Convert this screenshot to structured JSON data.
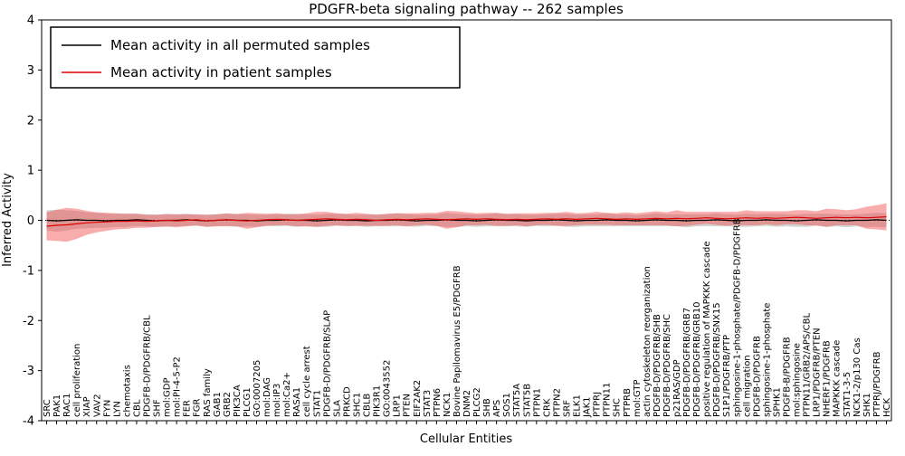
{
  "title": "PDGFR-beta signaling pathway -- 262 samples",
  "axes": {
    "xlabel": "Cellular Entities",
    "ylabel": "Inferred Activity",
    "ylim": [
      -4,
      4
    ],
    "yticks": [
      -4,
      -3,
      -2,
      -1,
      0,
      1,
      2,
      3,
      4
    ]
  },
  "legend": {
    "position": "upper left",
    "items": [
      {
        "label": "Mean activity in all permuted samples",
        "color": "#000000"
      },
      {
        "label": "Mean activity in patient samples",
        "color": "#dd0000"
      }
    ]
  },
  "colors": {
    "permuted_line": "#000000",
    "patient_line": "#dd0000",
    "permuted_band": "rgba(128,128,128,0.35)",
    "patient_band": "rgba(240,70,70,0.45)"
  },
  "chart_data": {
    "type": "line",
    "title": "PDGFR-beta signaling pathway -- 262 samples",
    "xlabel": "Cellular Entities",
    "ylabel": "Inferred Activity",
    "ylim": [
      -4,
      4
    ],
    "grid": false,
    "legend_position": "upper left",
    "categories": [
      "SRC",
      "PAK1",
      "RAC1",
      "cell proliferation",
      "XIAP",
      "VAV2",
      "FYN",
      "LYN",
      "chemotaxis",
      "CBL",
      "PDGFB-D/PDGFRB/CBL",
      "SHF",
      "mol:GDP",
      "mol:PI-4-5-P2",
      "FER",
      "FGR",
      "RAS family",
      "GAB1",
      "GRB2",
      "PIK3CA",
      "PLCG1",
      "GO:0007205",
      "mol:DAG",
      "mol:IP3",
      "mol:Ca2+",
      "RASA1",
      "cell cycle arrest",
      "STAT1",
      "PDGFB-D/PDGFRB/SLAP",
      "SLA",
      "PRKCD",
      "SHC1",
      "CBLB",
      "PIK3R1",
      "GO:0043552",
      "LRP1",
      "PTEN",
      "EIF2AK2",
      "STAT3",
      "PTPN6",
      "NCK1",
      "Bovine Papilomavirus E5/PDGFRB",
      "DNM2",
      "PLCG2",
      "SHB",
      "APS",
      "SOS1",
      "STAT5A",
      "STAT5B",
      "PTPN1",
      "CRK",
      "PTPN2",
      "SRF",
      "ELK1",
      "JAK1",
      "PTPRJ",
      "PTPN11",
      "SHC",
      "PTPRB",
      "mol:GTP",
      "actin cytoskeleton reorganization",
      "PDGFB-D/PDGFRB/SHB",
      "PDGFB-D/PDGFRB/SHC",
      "p21RAS/GDP",
      "PDGFB-D/PDGFRB/GRB7",
      "PDGFB-D/PDGFRB/GRB10",
      "positive regulation of MAPKKK cascade",
      "PDGFB-D/PDGFRB/SNX15",
      "S1P1/PDGFRB/PTP",
      "sphingosine-1-phosphate/PDGFB-D/PDGFRB",
      "cell migration",
      "PDGFB-D/PDGFRB",
      "sphingosine-1-phosphate",
      "SPHK1",
      "PDGFB-B/PDGFRB",
      "mol:sphingosine",
      "PTPN11/GRB2/APS/CBL",
      "LRP1/PDGFRB/PTEN",
      "NHERF1/PDGFRB",
      "MAPKKK cascade",
      "STAT1-3-5",
      "NCK1-2/p130 Cas",
      "SHK1",
      "PTPRJ/PDGFRB",
      "HCK"
    ],
    "series": [
      {
        "name": "Mean activity in all permuted samples",
        "color": "#000000",
        "band_color": "rgba(128,128,128,0.35)",
        "values": [
          0.0,
          -0.01,
          0.0,
          0.01,
          0.0,
          0.0,
          -0.01,
          0.0,
          0.0,
          0.01,
          0.0,
          -0.01,
          0.0,
          0.0,
          0.01,
          0.0,
          -0.01,
          0.0,
          0.01,
          0.0,
          0.0,
          -0.01,
          0.0,
          0.0,
          0.01,
          0.0,
          0.0,
          -0.01,
          0.0,
          0.01,
          0.0,
          0.0,
          -0.01,
          0.0,
          0.0,
          0.01,
          0.0,
          -0.01,
          0.0,
          0.0,
          0.01,
          0.0,
          0.0,
          -0.01,
          0.0,
          0.01,
          0.0,
          0.0,
          -0.01,
          0.0,
          0.0,
          0.01,
          0.0,
          -0.01,
          0.0,
          0.0,
          0.01,
          0.0,
          0.0,
          -0.01,
          0.0,
          0.01,
          0.0,
          0.0,
          -0.01,
          0.0,
          0.0,
          0.01,
          0.0,
          -0.01,
          0.0,
          0.0,
          0.01,
          0.0,
          0.0,
          -0.01,
          0.0,
          0.01,
          0.0,
          0.0,
          -0.01,
          0.0,
          0.0,
          0.01,
          0.0
        ],
        "band_halfwidth": [
          0.2,
          0.22,
          0.2,
          0.18,
          0.16,
          0.15,
          0.14,
          0.13,
          0.13,
          0.12,
          0.12,
          0.12,
          0.13,
          0.12,
          0.12,
          0.11,
          0.12,
          0.12,
          0.12,
          0.13,
          0.12,
          0.12,
          0.11,
          0.12,
          0.12,
          0.13,
          0.12,
          0.12,
          0.13,
          0.12,
          0.12,
          0.11,
          0.12,
          0.12,
          0.12,
          0.13,
          0.12,
          0.12,
          0.11,
          0.12,
          0.14,
          0.13,
          0.12,
          0.12,
          0.12,
          0.13,
          0.12,
          0.12,
          0.12,
          0.11,
          0.12,
          0.12,
          0.13,
          0.12,
          0.12,
          0.12,
          0.13,
          0.12,
          0.12,
          0.11,
          0.12,
          0.13,
          0.12,
          0.12,
          0.13,
          0.12,
          0.12,
          0.13,
          0.12,
          0.12,
          0.13,
          0.12,
          0.12,
          0.13,
          0.12,
          0.12,
          0.13,
          0.12,
          0.13,
          0.12,
          0.13,
          0.12,
          0.13,
          0.14,
          0.14
        ]
      },
      {
        "name": "Mean activity in patient samples",
        "color": "#dd0000",
        "band_color": "rgba(240,70,70,0.45)",
        "values": [
          -0.12,
          -0.1,
          -0.09,
          -0.07,
          -0.05,
          -0.04,
          -0.03,
          -0.02,
          -0.02,
          -0.01,
          -0.02,
          -0.01,
          0.0,
          -0.01,
          0.0,
          0.01,
          -0.01,
          0.0,
          0.01,
          0.0,
          -0.01,
          0.0,
          0.01,
          0.02,
          0.01,
          0.0,
          0.01,
          0.02,
          0.03,
          0.02,
          0.01,
          0.02,
          0.01,
          0.0,
          0.01,
          0.02,
          0.01,
          0.02,
          0.03,
          0.02,
          0.01,
          0.02,
          0.03,
          0.02,
          0.03,
          0.02,
          0.01,
          0.02,
          0.01,
          0.02,
          0.03,
          0.02,
          0.03,
          0.02,
          0.03,
          0.04,
          0.03,
          0.02,
          0.03,
          0.02,
          0.03,
          0.04,
          0.03,
          0.04,
          0.03,
          0.04,
          0.05,
          0.04,
          0.03,
          0.04,
          0.05,
          0.04,
          0.05,
          0.04,
          0.05,
          0.06,
          0.05,
          0.04,
          0.05,
          0.06,
          0.05,
          0.06,
          0.05,
          0.06,
          0.07
        ],
        "band_halfwidth": [
          0.28,
          0.31,
          0.34,
          0.3,
          0.24,
          0.2,
          0.18,
          0.16,
          0.15,
          0.14,
          0.13,
          0.12,
          0.12,
          0.13,
          0.12,
          0.11,
          0.12,
          0.12,
          0.13,
          0.12,
          0.16,
          0.14,
          0.12,
          0.12,
          0.11,
          0.12,
          0.13,
          0.15,
          0.14,
          0.12,
          0.12,
          0.13,
          0.12,
          0.11,
          0.12,
          0.12,
          0.13,
          0.12,
          0.12,
          0.13,
          0.18,
          0.16,
          0.13,
          0.12,
          0.12,
          0.13,
          0.12,
          0.12,
          0.13,
          0.12,
          0.12,
          0.13,
          0.14,
          0.12,
          0.12,
          0.13,
          0.12,
          0.12,
          0.13,
          0.12,
          0.13,
          0.14,
          0.13,
          0.16,
          0.14,
          0.13,
          0.12,
          0.13,
          0.14,
          0.13,
          0.15,
          0.14,
          0.13,
          0.14,
          0.13,
          0.14,
          0.15,
          0.14,
          0.18,
          0.16,
          0.15,
          0.16,
          0.22,
          0.24,
          0.27
        ]
      }
    ]
  }
}
